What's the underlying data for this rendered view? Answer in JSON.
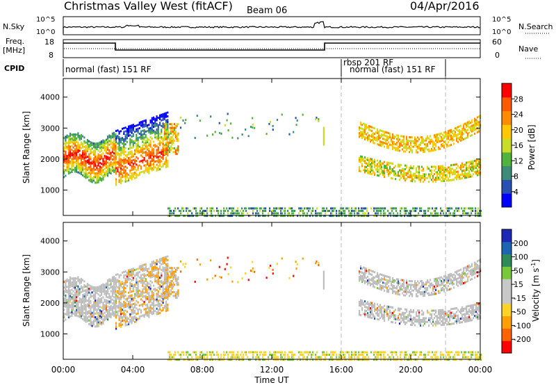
{
  "header": {
    "title": "Christmas Valley West (fitACF)",
    "beam": "Beam 06",
    "date": "04/Apr/2016"
  },
  "top_panels": {
    "nsky_label": "N.Sky",
    "nsky_ticks": [
      "10^5",
      "10^0"
    ],
    "nsearch_label": "N.Search",
    "freq_label": "Freq.",
    "freq_unit": "[MHz]",
    "freq_ticks": [
      "18",
      "8"
    ],
    "nave_label": "Nave",
    "nave_ticks": [
      "60",
      "0"
    ],
    "cpid_label": "CPID",
    "cpid_segments": [
      "normal (fast) 151 RF",
      "rbsp 201 RF",
      "normal (fast) 151 RF"
    ]
  },
  "colors": {
    "power_scale": [
      "#0000ff",
      "#2850b4",
      "#3c8c78",
      "#50b43c",
      "#c8dc28",
      "#ffc800",
      "#ff8c00",
      "#ff5a00",
      "#ff0000"
    ],
    "velocity_scale": [
      "#ff0000",
      "#ff6400",
      "#ffa000",
      "#ffd228",
      "#c8c8c8",
      "#c8c8c8",
      "#78c83c",
      "#2e8b57",
      "#1e64b4",
      "#1e28b4"
    ],
    "ground_scatter": "#bebebe"
  },
  "chart_data": [
    {
      "type": "heatmap",
      "name": "power",
      "xlabel": "Time UT",
      "ylabel": "Slant Range [km]",
      "xlim": [
        0,
        24
      ],
      "ylim": [
        180,
        4600
      ],
      "x_ticks": [
        "00:00",
        "04:00",
        "08:00",
        "12:00",
        "16:00",
        "20:00",
        "00:00"
      ],
      "y_ticks": [
        "1000",
        "2000",
        "3000",
        "4000"
      ],
      "y_tick_values": [
        1000,
        2000,
        3000,
        4000
      ],
      "colorbar_label": "Power [dB]",
      "colorbar_ticks": [
        "28",
        "24",
        "20",
        "16",
        "12",
        "8",
        "4"
      ],
      "colorbar_range": [
        0,
        30
      ],
      "markers_ut": [
        16,
        22
      ]
    },
    {
      "type": "heatmap",
      "name": "velocity",
      "xlabel": "Time UT",
      "ylabel": "Slant Range [km]",
      "xlim": [
        0,
        24
      ],
      "ylim": [
        180,
        4600
      ],
      "x_ticks": [
        "00:00",
        "04:00",
        "08:00",
        "12:00",
        "16:00",
        "20:00",
        "00:00"
      ],
      "y_ticks": [
        "1000",
        "2000",
        "3000",
        "4000"
      ],
      "y_tick_values": [
        1000,
        2000,
        3000,
        4000
      ],
      "colorbar_label": "Velocity [m s",
      "colorbar_label_sup": "-1",
      "colorbar_label_end": "]",
      "colorbar_ticks": [
        "200",
        "100",
        "50",
        "15",
        "-15",
        "-50",
        "-100",
        "-200"
      ],
      "markers_ut": [
        16,
        22
      ]
    }
  ]
}
